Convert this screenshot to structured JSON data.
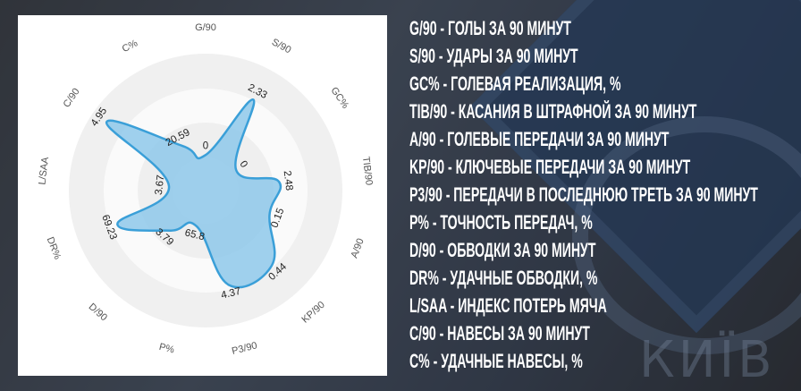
{
  "background": {
    "logo_text": "КИЇВ"
  },
  "legend": [
    "G/90 - ГОЛЫ ЗА 90 МИНУТ",
    "S/90 - УДАРЫ ЗА 90 МИНУТ",
    "GC% - ГОЛЕВАЯ РЕАЛИЗАЦИЯ, %",
    "TIB/90 - КАСАНИЯ В ШТРАФНОЙ ЗА 90 МИНУТ",
    "A/90 - ГОЛЕВЫЕ ПЕРЕДАЧИ ЗА 90 МИНУТ",
    "KP/90 - КЛЮЧЕВЫЕ ПЕРЕДАЧИ ЗА 90 МИНУТ",
    "P3/90 - ПЕРЕДАЧИ В ПОСЛЕДНЮЮ ТРЕТЬ ЗА 90 МИНУТ",
    "P% - ТОЧНОСТЬ ПЕРЕДАЧ, %",
    "D/90 - ОБВОДКИ ЗА 90 МИНУТ",
    "DR% - УДАЧНЫЕ ОБВОДКИ, %",
    "L/SAA - ИНДЕКС ПОТЕРЬ МЯЧА",
    "C/90 - НАВЕСЫ ЗА 90 МИНУТ",
    "C% - УДАЧНЫЕ НАВЕСЫ, %"
  ],
  "chart_data": {
    "type": "radar",
    "categories": [
      "G/90",
      "S/90",
      "GC%",
      "TIB/90",
      "A/90",
      "KP/90",
      "P3/90",
      "P%",
      "D/90",
      "DR%",
      "L/SAA",
      "C/90",
      "C%"
    ],
    "values": [
      0,
      2.33,
      0,
      2.48,
      0.15,
      0.44,
      4.37,
      65.8,
      3.79,
      69.23,
      3.67,
      4.95,
      20.59
    ],
    "value_labels": [
      "0",
      "2.33",
      "0",
      "2.48",
      "0.15",
      "0.44",
      "4.37",
      "65.8",
      "3.79",
      "69.23",
      "3.67",
      "4.95",
      "20.59"
    ],
    "fill_color": "#8ec8ea",
    "line_color": "#3a9fd8",
    "ring_colors": [
      "#f0f0f0",
      "#fafafa",
      "#efefef",
      "#f6f6f6"
    ],
    "grid": true
  }
}
